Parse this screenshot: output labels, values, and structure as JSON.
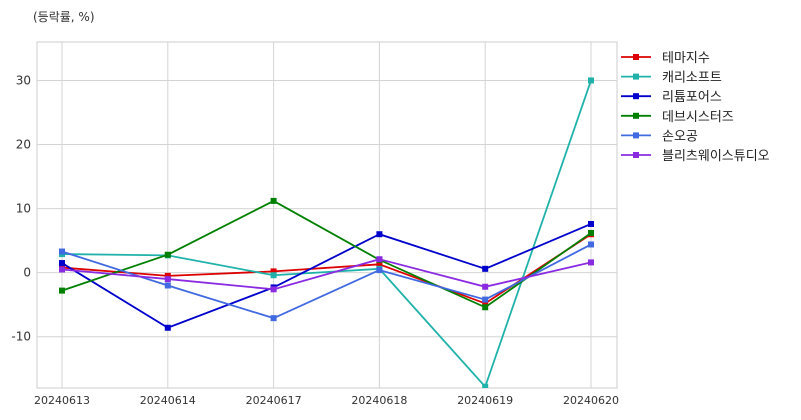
{
  "chart_data": {
    "type": "line",
    "unit_label": "(등락률, %)",
    "categories": [
      "20240613",
      "20240614",
      "20240617",
      "20240618",
      "20240619",
      "20240620"
    ],
    "ylim": [
      -18,
      36
    ],
    "yticks": [
      -10,
      0,
      10,
      20,
      30
    ],
    "grid": true,
    "legend_position": "right",
    "series": [
      {
        "name": "테마지수",
        "color": "#dd0000",
        "values": [
          0.8,
          -0.5,
          0.2,
          1.3,
          -4.8,
          6.0
        ]
      },
      {
        "name": "캐리소프트",
        "color": "#20b2aa",
        "values": [
          2.9,
          2.7,
          -0.4,
          0.6,
          -17.8,
          30.0
        ]
      },
      {
        "name": "리튬포어스",
        "color": "#0000cc",
        "values": [
          1.5,
          -8.6,
          -2.3,
          6.0,
          0.6,
          7.6
        ]
      },
      {
        "name": "데브시스터즈",
        "color": "#008000",
        "values": [
          -2.8,
          2.8,
          11.2,
          2.0,
          -5.4,
          6.2
        ]
      },
      {
        "name": "손오공",
        "color": "#4169e1",
        "values": [
          3.3,
          -2.0,
          -7.1,
          0.4,
          -4.2,
          4.4
        ]
      },
      {
        "name": "블리츠웨이스튜디오",
        "color": "#8a2be2",
        "values": [
          0.5,
          -1.0,
          -2.6,
          2.1,
          -2.2,
          1.6
        ]
      }
    ]
  }
}
